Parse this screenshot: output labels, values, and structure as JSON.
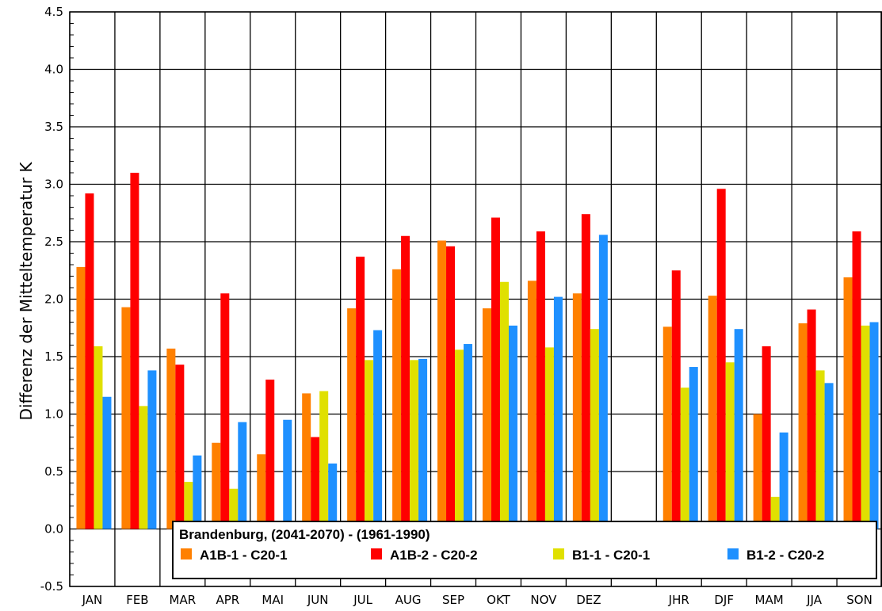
{
  "chart_data": {
    "type": "bar",
    "title": "",
    "xlabel": "",
    "ylabel": "Differenz der Mitteltemperatur  K",
    "ylim": [
      -0.5,
      4.5
    ],
    "yticks": [
      "-0.5",
      "0.0",
      "0.5",
      "1.0",
      "1.5",
      "2.0",
      "2.5",
      "3.0",
      "3.5",
      "4.0",
      "4.5"
    ],
    "grid": true,
    "categories": [
      "JAN",
      "FEB",
      "MAR",
      "APR",
      "MAI",
      "JUN",
      "JUL",
      "AUG",
      "SEP",
      "OKT",
      "NOV",
      "DEZ",
      "",
      "JHR",
      "DJF",
      "MAM",
      "JJA",
      "SON"
    ],
    "series": [
      {
        "name": "A1B-1 - C20-1",
        "color": "#ff8000",
        "values": [
          2.28,
          1.93,
          1.57,
          0.75,
          0.65,
          1.18,
          1.92,
          2.26,
          2.51,
          1.92,
          2.16,
          2.05,
          null,
          1.76,
          2.03,
          1.0,
          1.79,
          2.19
        ]
      },
      {
        "name": "A1B-2 - C20-2",
        "color": "#ff0000",
        "values": [
          2.92,
          3.1,
          1.43,
          2.05,
          1.3,
          0.8,
          2.37,
          2.55,
          2.46,
          2.71,
          2.59,
          2.74,
          null,
          2.25,
          2.96,
          1.59,
          1.91,
          2.59
        ]
      },
      {
        "name": "B1-1 - C20-1",
        "color": "#e0e000",
        "values": [
          1.59,
          1.07,
          0.41,
          0.35,
          null,
          1.2,
          1.47,
          1.47,
          1.56,
          2.15,
          1.58,
          1.74,
          null,
          1.23,
          1.45,
          0.28,
          1.38,
          1.77
        ]
      },
      {
        "name": "B1-2 - C20-2",
        "color": "#1e90ff",
        "values": [
          1.15,
          1.38,
          0.64,
          0.93,
          0.95,
          0.57,
          1.73,
          1.48,
          1.61,
          1.77,
          2.02,
          2.56,
          null,
          1.41,
          1.74,
          0.84,
          1.27,
          1.8
        ]
      }
    ],
    "legend": {
      "title": "Brandenburg, (2041-2070) - (1961-1990)",
      "placement": "bottom"
    }
  }
}
